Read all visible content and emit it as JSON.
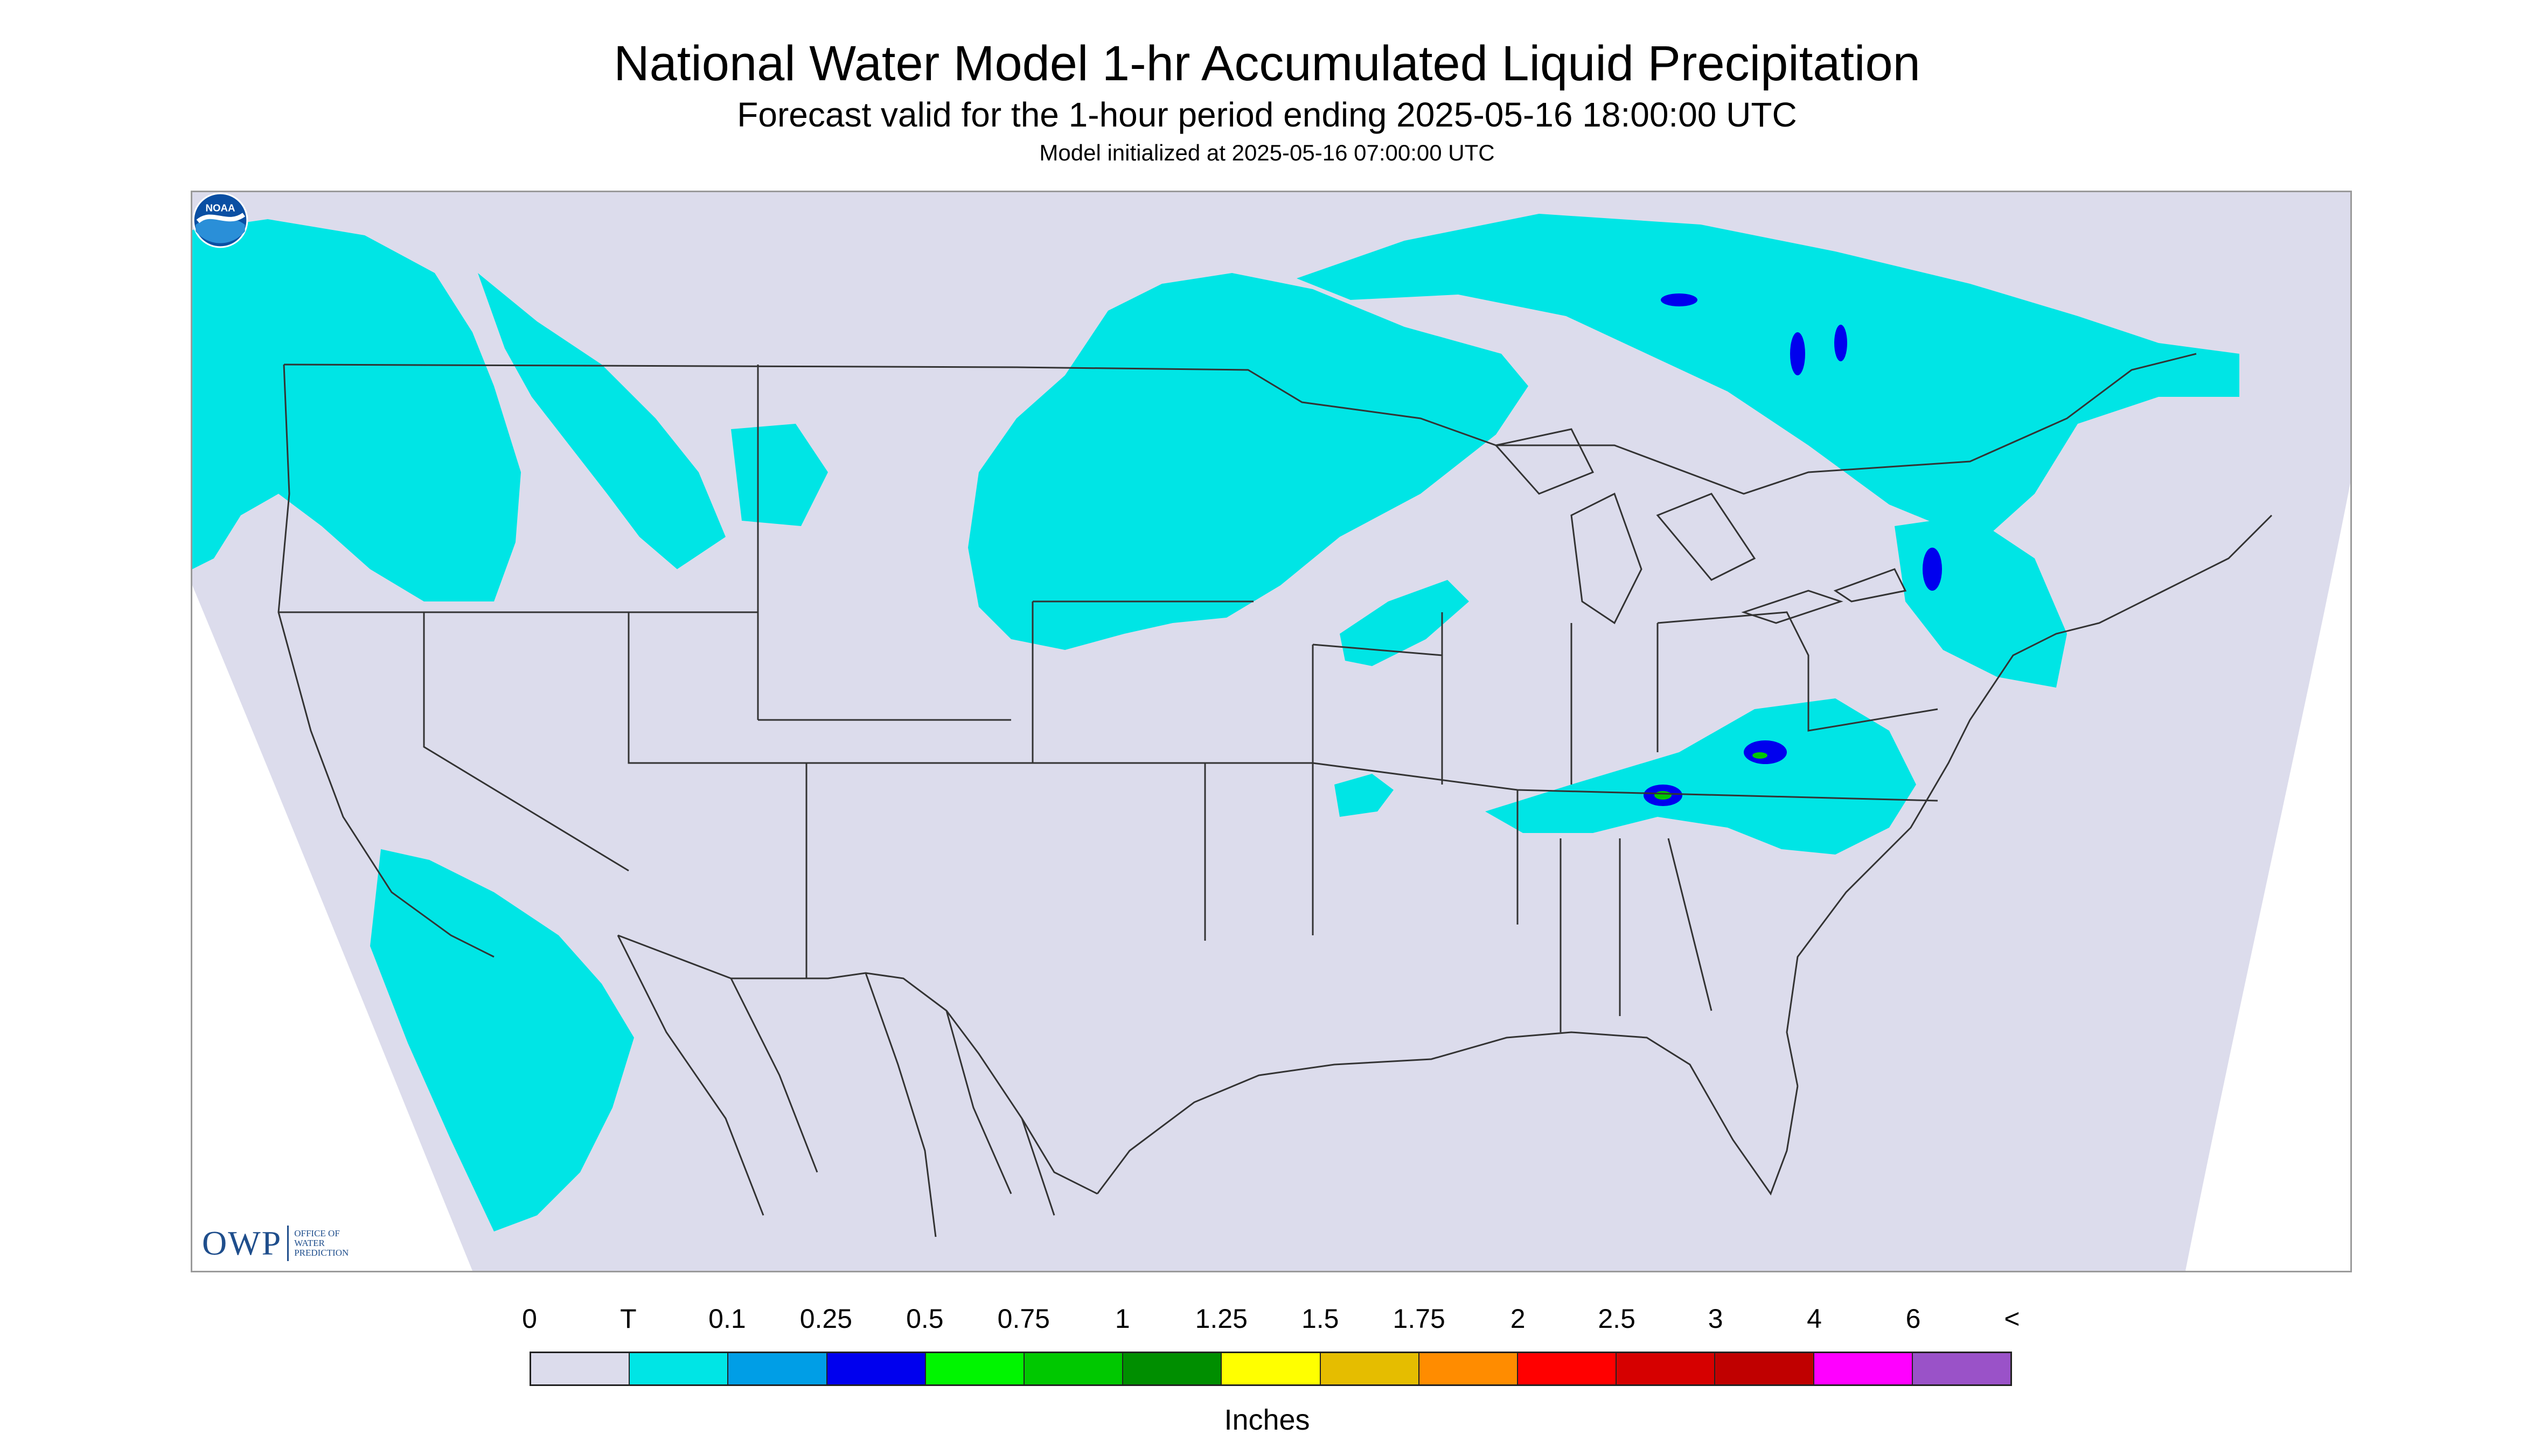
{
  "header": {
    "title": "National Water Model 1-hr Accumulated Liquid Precipitation",
    "subtitle": "Forecast valid for the 1-hour period ending 2025-05-16 18:00:00 UTC",
    "init_line": "Model initialized at 2025-05-16 07:00:00 UTC"
  },
  "map": {
    "background_color": "#dcdcec",
    "border_color": "#9a9a9a",
    "boundary_color": "#333333",
    "precip_areas": [
      {
        "region": "Pacific Northwest",
        "class": "T"
      },
      {
        "region": "Northern Rockies / Montana",
        "class": "T"
      },
      {
        "region": "Dakotas / Minnesota / Lake Superior",
        "class": "T"
      },
      {
        "region": "Ontario / Quebec",
        "class": "T"
      },
      {
        "region": "Tennessee Valley / Appalachians",
        "class": "T"
      },
      {
        "region": "New York / Pennsylvania / New Jersey",
        "class": "T"
      },
      {
        "region": "Southern California / Baja offshore",
        "class": "T"
      }
    ],
    "heavy_cores": [
      {
        "region": "Southern Appalachians",
        "class": "1"
      },
      {
        "region": "Quebec",
        "class": "0.25"
      }
    ]
  },
  "logos": {
    "owp_text": "OWP",
    "owp_full": [
      "OFFICE OF",
      "WATER",
      "PREDICTION"
    ],
    "noaa_text": "NOAA"
  },
  "legend": {
    "labels": [
      "0",
      "T",
      "0.1",
      "0.25",
      "0.5",
      "0.75",
      "1",
      "1.25",
      "1.5",
      "1.75",
      "2",
      "2.5",
      "3",
      "4",
      "6",
      "<"
    ],
    "colors": [
      "#dcdcec",
      "#00e5e5",
      "#009ee6",
      "#0000ee",
      "#00f500",
      "#00c800",
      "#008e00",
      "#ffff00",
      "#e5bd00",
      "#ff8c00",
      "#ff0000",
      "#d60000",
      "#c00000",
      "#ff00ff",
      "#9a52c8"
    ],
    "units": "Inches"
  }
}
